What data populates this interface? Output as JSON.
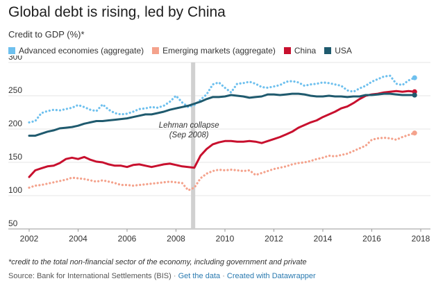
{
  "title": "Global debt is rising, led by China",
  "subtitle": "Credit to GDP (%)*",
  "colors": {
    "advanced": "#6ec0ee",
    "emerging": "#f4a28c",
    "china": "#c8102e",
    "usa": "#1f5a6e",
    "grid": "#e6e6e6",
    "lehman_bar": "#d0d0d0"
  },
  "chart_data": {
    "type": "line",
    "xlim": [
      2002,
      2018
    ],
    "ylim": [
      50,
      300
    ],
    "x_ticks": [
      "2002",
      "2004",
      "2006",
      "2008",
      "2010",
      "2012",
      "2014",
      "2016",
      "2018"
    ],
    "y_ticks": [
      "50",
      "100",
      "150",
      "200",
      "250",
      "300"
    ],
    "grid": true,
    "legend_position": "top-left",
    "series": [
      {
        "name": "Advanced economies (aggregate)",
        "style": "dotted",
        "x": [
          2002,
          2002.25,
          2002.5,
          2002.75,
          2003,
          2003.25,
          2003.5,
          2003.75,
          2004,
          2004.25,
          2004.5,
          2004.75,
          2005,
          2005.25,
          2005.5,
          2005.75,
          2006,
          2006.25,
          2006.5,
          2006.75,
          2007,
          2007.25,
          2007.5,
          2007.75,
          2008,
          2008.25,
          2008.5,
          2008.75,
          2009,
          2009.25,
          2009.5,
          2009.75,
          2010,
          2010.25,
          2010.5,
          2010.75,
          2011,
          2011.25,
          2011.5,
          2011.75,
          2012,
          2012.25,
          2012.5,
          2012.75,
          2013,
          2013.25,
          2013.5,
          2013.75,
          2014,
          2014.25,
          2014.5,
          2014.75,
          2015,
          2015.25,
          2015.5,
          2015.75,
          2016,
          2016.25,
          2016.5,
          2016.75,
          2017,
          2017.25,
          2017.5,
          2017.75
        ],
        "values": [
          210,
          212,
          224,
          227,
          229,
          228,
          230,
          232,
          236,
          233,
          229,
          227,
          237,
          229,
          224,
          222,
          223,
          226,
          230,
          231,
          233,
          232,
          235,
          241,
          250,
          240,
          233,
          236,
          244,
          252,
          267,
          270,
          262,
          255,
          268,
          269,
          271,
          268,
          263,
          262,
          264,
          266,
          271,
          272,
          270,
          265,
          267,
          268,
          270,
          269,
          267,
          265,
          258,
          256,
          261,
          265,
          271,
          275,
          279,
          280,
          268,
          266,
          273,
          277
        ]
      },
      {
        "name": "Emerging markets (aggregate)",
        "style": "dotted",
        "x": [
          2002,
          2002.25,
          2002.5,
          2002.75,
          2003,
          2003.25,
          2003.5,
          2003.75,
          2004,
          2004.25,
          2004.5,
          2004.75,
          2005,
          2005.25,
          2005.5,
          2005.75,
          2006,
          2006.25,
          2006.5,
          2006.75,
          2007,
          2007.25,
          2007.5,
          2007.75,
          2008,
          2008.25,
          2008.5,
          2008.75,
          2009,
          2009.25,
          2009.5,
          2009.75,
          2010,
          2010.25,
          2010.5,
          2010.75,
          2011,
          2011.25,
          2011.5,
          2011.75,
          2012,
          2012.25,
          2012.5,
          2012.75,
          2013,
          2013.25,
          2013.5,
          2013.75,
          2014,
          2014.25,
          2014.5,
          2014.75,
          2015,
          2015.25,
          2015.5,
          2015.75,
          2016,
          2016.25,
          2016.5,
          2016.75,
          2017,
          2017.25,
          2017.5,
          2017.75
        ],
        "values": [
          112,
          115,
          116,
          118,
          120,
          122,
          124,
          127,
          126,
          125,
          123,
          121,
          123,
          121,
          119,
          116,
          116,
          115,
          116,
          117,
          118,
          119,
          120,
          121,
          120,
          119,
          108,
          112,
          126,
          133,
          137,
          139,
          138,
          139,
          138,
          137,
          138,
          131,
          134,
          137,
          140,
          142,
          144,
          147,
          149,
          150,
          152,
          155,
          157,
          160,
          159,
          161,
          163,
          167,
          171,
          175,
          184,
          186,
          187,
          186,
          184,
          188,
          191,
          194
        ]
      },
      {
        "name": "China",
        "style": "solid",
        "x": [
          2002,
          2002.25,
          2002.5,
          2002.75,
          2003,
          2003.25,
          2003.5,
          2003.75,
          2004,
          2004.25,
          2004.5,
          2004.75,
          2005,
          2005.25,
          2005.5,
          2005.75,
          2006,
          2006.25,
          2006.5,
          2006.75,
          2007,
          2007.25,
          2007.5,
          2007.75,
          2008,
          2008.25,
          2008.5,
          2008.75,
          2009,
          2009.25,
          2009.5,
          2009.75,
          2010,
          2010.25,
          2010.5,
          2010.75,
          2011,
          2011.25,
          2011.5,
          2011.75,
          2012,
          2012.25,
          2012.5,
          2012.75,
          2013,
          2013.25,
          2013.5,
          2013.75,
          2014,
          2014.25,
          2014.5,
          2014.75,
          2015,
          2015.25,
          2015.5,
          2015.75,
          2016,
          2016.25,
          2016.5,
          2016.75,
          2017,
          2017.25,
          2017.5,
          2017.75
        ],
        "values": [
          128,
          138,
          141,
          144,
          145,
          149,
          155,
          157,
          155,
          158,
          154,
          151,
          150,
          147,
          145,
          145,
          143,
          146,
          147,
          145,
          143,
          145,
          147,
          148,
          146,
          144,
          143,
          142,
          160,
          170,
          177,
          180,
          182,
          182,
          181,
          181,
          182,
          181,
          179,
          182,
          185,
          188,
          192,
          196,
          202,
          206,
          210,
          213,
          218,
          222,
          226,
          231,
          234,
          239,
          245,
          250,
          252,
          253,
          255,
          256,
          257,
          256,
          257,
          256
        ]
      },
      {
        "name": "USA",
        "style": "solid",
        "x": [
          2002,
          2002.25,
          2002.5,
          2002.75,
          2003,
          2003.25,
          2003.5,
          2003.75,
          2004,
          2004.25,
          2004.5,
          2004.75,
          2005,
          2005.25,
          2005.5,
          2005.75,
          2006,
          2006.25,
          2006.5,
          2006.75,
          2007,
          2007.25,
          2007.5,
          2007.75,
          2008,
          2008.25,
          2008.5,
          2008.75,
          2009,
          2009.25,
          2009.5,
          2009.75,
          2010,
          2010.25,
          2010.5,
          2010.75,
          2011,
          2011.25,
          2011.5,
          2011.75,
          2012,
          2012.25,
          2012.5,
          2012.75,
          2013,
          2013.25,
          2013.5,
          2013.75,
          2014,
          2014.25,
          2014.5,
          2014.75,
          2015,
          2015.25,
          2015.5,
          2015.75,
          2016,
          2016.25,
          2016.5,
          2016.75,
          2017,
          2017.25,
          2017.5,
          2017.75
        ],
        "values": [
          190,
          190,
          193,
          196,
          198,
          201,
          202,
          203,
          205,
          208,
          210,
          212,
          212,
          213,
          214,
          215,
          216,
          218,
          220,
          222,
          222,
          224,
          226,
          229,
          231,
          233,
          235,
          238,
          241,
          245,
          248,
          248,
          249,
          251,
          250,
          249,
          247,
          248,
          249,
          252,
          252,
          251,
          252,
          253,
          253,
          252,
          250,
          249,
          249,
          250,
          249,
          249,
          248,
          249,
          249,
          251,
          251,
          252,
          253,
          253,
          252,
          251,
          251,
          251
        ]
      }
    ],
    "annotation": {
      "x": 2008.7,
      "line1": "Lehman collapse",
      "line2": "(Sep 2008)"
    }
  },
  "footnote": "*credit to the total non-financial sector of the economy, including government and private",
  "source": {
    "prefix": "Source: Bank for International Settlements (BIS)",
    "separator": "·",
    "link1": "Get the data",
    "link2": "Created with Datawrapper"
  }
}
